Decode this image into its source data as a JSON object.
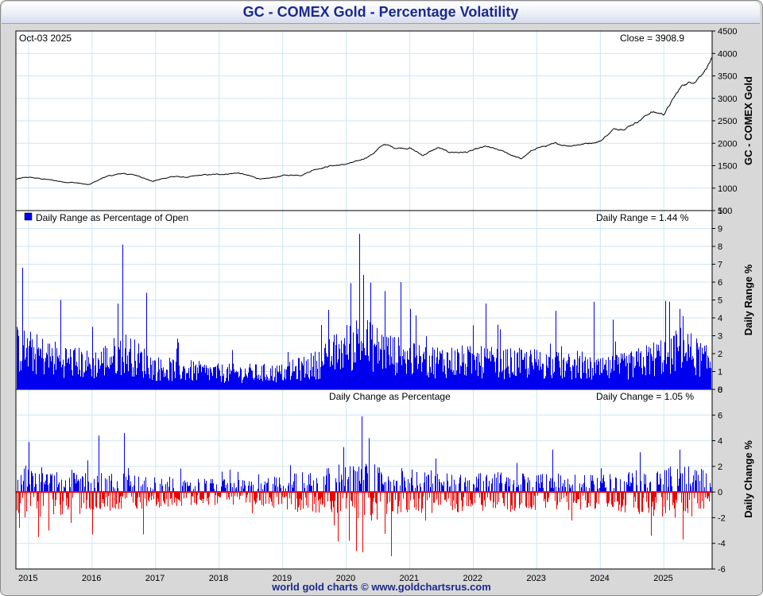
{
  "chart_title": "GC - COMEX Gold - Percentage Volatility",
  "footer": "world gold charts © www.goldchartsrus.com",
  "colors": {
    "title": "#1b2a8c",
    "price_line": "#000000",
    "range_bars": "#0000ee",
    "change_up": "#0000ee",
    "change_down": "#ee0000",
    "zero_line": "#ee0000",
    "grid": "#cfe6f2"
  },
  "chart_data": [
    {
      "id": "price",
      "type": "line",
      "title": "GC - COMEX Gold",
      "date_label": "Oct-03  2025",
      "close_label": "Close = 3908.9",
      "ylabel": "GC - COMEX Gold",
      "ylim": [
        500,
        4500
      ],
      "yticks": [
        500,
        1000,
        1500,
        2000,
        2500,
        3000,
        3500,
        4000,
        4500
      ],
      "x": [
        2014.8,
        2015.0,
        2015.25,
        2015.5,
        2015.75,
        2015.95,
        2016.2,
        2016.5,
        2016.75,
        2016.95,
        2017.25,
        2017.5,
        2017.75,
        2017.95,
        2018.3,
        2018.6,
        2018.75,
        2019.0,
        2019.3,
        2019.5,
        2019.75,
        2019.95,
        2020.2,
        2020.4,
        2020.6,
        2020.75,
        2021.0,
        2021.2,
        2021.45,
        2021.6,
        2021.9,
        2022.2,
        2022.5,
        2022.75,
        2023.0,
        2023.3,
        2023.5,
        2023.8,
        2024.0,
        2024.2,
        2024.4,
        2024.6,
        2024.8,
        2025.0,
        2025.2,
        2025.3,
        2025.5,
        2025.65,
        2025.76
      ],
      "y": [
        1200,
        1240,
        1200,
        1150,
        1120,
        1070,
        1250,
        1330,
        1270,
        1150,
        1260,
        1240,
        1290,
        1300,
        1340,
        1220,
        1200,
        1280,
        1300,
        1420,
        1500,
        1520,
        1600,
        1750,
        1980,
        1900,
        1900,
        1730,
        1900,
        1800,
        1800,
        1920,
        1800,
        1650,
        1900,
        1980,
        1950,
        2000,
        2050,
        2300,
        2350,
        2500,
        2700,
        2650,
        3100,
        3300,
        3400,
        3650,
        3908.9
      ]
    },
    {
      "id": "daily_range",
      "type": "bar",
      "title": "Daily Range as Percentage of Open",
      "legend": "Daily Range as Percentage of Open",
      "value_label": "Daily Range = 1.44 %",
      "ylabel": "Daily Range %",
      "ylim": [
        0,
        10
      ],
      "yticks": [
        0,
        1,
        2,
        3,
        4,
        5,
        6,
        7,
        8,
        9,
        10
      ],
      "baseline": [
        [
          2014.8,
          2.5
        ],
        [
          2015.3,
          2.0
        ],
        [
          2016.0,
          1.5
        ],
        [
          2016.5,
          2.3
        ],
        [
          2017.0,
          1.3
        ],
        [
          2018.0,
          1.0
        ],
        [
          2019.0,
          1.0
        ],
        [
          2019.5,
          1.5
        ],
        [
          2020.2,
          3.0
        ],
        [
          2020.5,
          2.5
        ],
        [
          2021.0,
          1.8
        ],
        [
          2022.0,
          1.7
        ],
        [
          2022.5,
          1.6
        ],
        [
          2023.0,
          1.6
        ],
        [
          2024.0,
          1.2
        ],
        [
          2024.5,
          1.5
        ],
        [
          2025.3,
          2.5
        ],
        [
          2025.76,
          1.5
        ]
      ],
      "peaks": [
        [
          2014.9,
          6.8
        ],
        [
          2015.5,
          5.0
        ],
        [
          2016.0,
          3.5
        ],
        [
          2016.4,
          4.8
        ],
        [
          2016.48,
          8.1
        ],
        [
          2016.85,
          5.4
        ],
        [
          2018.2,
          2.2
        ],
        [
          2019.6,
          3.6
        ],
        [
          2020.2,
          8.7
        ],
        [
          2020.27,
          6.4
        ],
        [
          2020.6,
          5.5
        ],
        [
          2020.85,
          6.0
        ],
        [
          2021.0,
          4.5
        ],
        [
          2022.2,
          4.8
        ],
        [
          2023.3,
          4.4
        ],
        [
          2023.9,
          4.9
        ],
        [
          2024.2,
          3.9
        ],
        [
          2025.25,
          4.5
        ],
        [
          2025.3,
          4.1
        ]
      ]
    },
    {
      "id": "daily_change",
      "type": "bar",
      "title": "Daily Change as Percentage",
      "value_label": "Daily Change = 1.05 %",
      "ylabel": "Daily Change %",
      "ylim": [
        -6,
        8
      ],
      "yticks": [
        -6,
        -4,
        -2,
        0,
        2,
        4,
        6,
        8
      ],
      "baseline": [
        [
          2014.8,
          1.6
        ],
        [
          2016.0,
          1.2
        ],
        [
          2017.5,
          0.8
        ],
        [
          2018.5,
          0.7
        ],
        [
          2020.2,
          1.8
        ],
        [
          2021.0,
          1.3
        ],
        [
          2022.0,
          1.2
        ],
        [
          2024.0,
          1.0
        ],
        [
          2025.3,
          1.6
        ],
        [
          2025.76,
          1.2
        ]
      ],
      "up_peaks": [
        [
          2015.0,
          3.9
        ],
        [
          2016.1,
          4.4
        ],
        [
          2016.5,
          4.6
        ],
        [
          2019.95,
          3.5
        ],
        [
          2020.24,
          5.9
        ],
        [
          2020.35,
          4.2
        ],
        [
          2023.25,
          3.3
        ],
        [
          2025.25,
          3.3
        ]
      ],
      "down_peaks": [
        [
          2014.85,
          -2.8
        ],
        [
          2016.0,
          -3.3
        ],
        [
          2016.8,
          -3.3
        ],
        [
          2020.15,
          -4.6
        ],
        [
          2020.25,
          -4.7
        ],
        [
          2020.7,
          -5.0
        ],
        [
          2021.5,
          -4.5
        ],
        [
          2024.8,
          -3.4
        ],
        [
          2025.3,
          -3.7
        ]
      ]
    }
  ],
  "x_axis": {
    "ticks": [
      "2015",
      "2016",
      "2017",
      "2018",
      "2019",
      "2020",
      "2021",
      "2022",
      "2023",
      "2024",
      "2025"
    ],
    "tick_years": [
      2015,
      2016,
      2017,
      2018,
      2019,
      2020,
      2021,
      2022,
      2023,
      2024,
      2025
    ],
    "xlim": [
      2014.8,
      2025.76
    ]
  }
}
